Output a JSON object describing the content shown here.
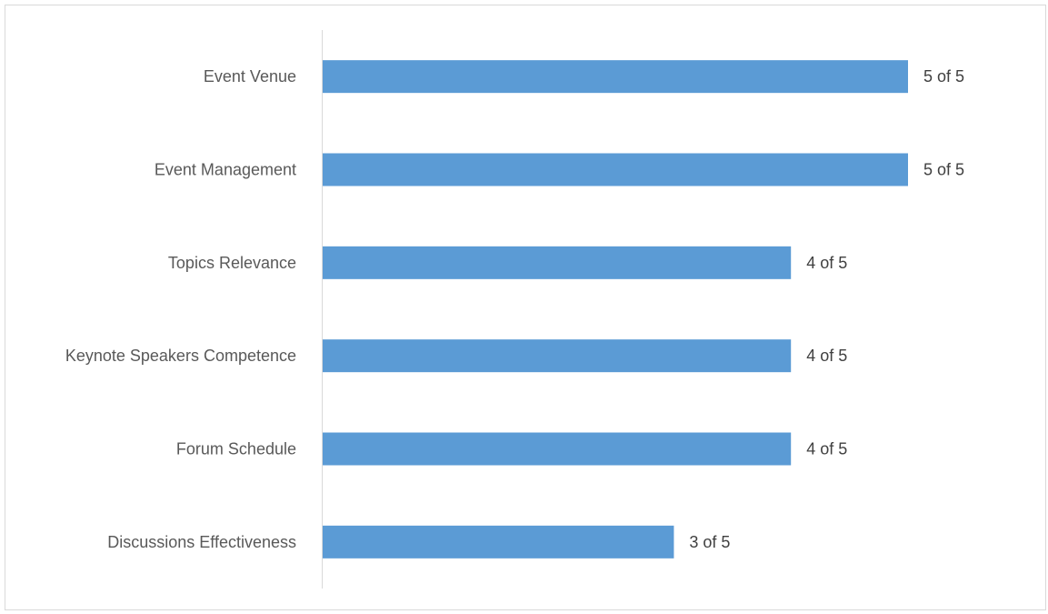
{
  "chart_data": {
    "type": "bar",
    "orientation": "horizontal",
    "categories": [
      "Event Venue",
      "Event Management",
      "Topics Relevance",
      "Keynote Speakers Competence",
      "Forum Schedule",
      "Discussions Effectiveness"
    ],
    "values": [
      5,
      5,
      4,
      4,
      4,
      3
    ],
    "data_labels": [
      "5 of 5",
      "5 of 5",
      "4 of 5",
      "4 of 5",
      "4 of 5",
      "3 of 5"
    ],
    "title": "",
    "xlabel": "",
    "ylabel": "",
    "xlim": [
      0,
      5
    ],
    "grid": false,
    "legend": "none",
    "bar_color": "#5b9bd5",
    "axis_color": "#d9d9d9"
  }
}
